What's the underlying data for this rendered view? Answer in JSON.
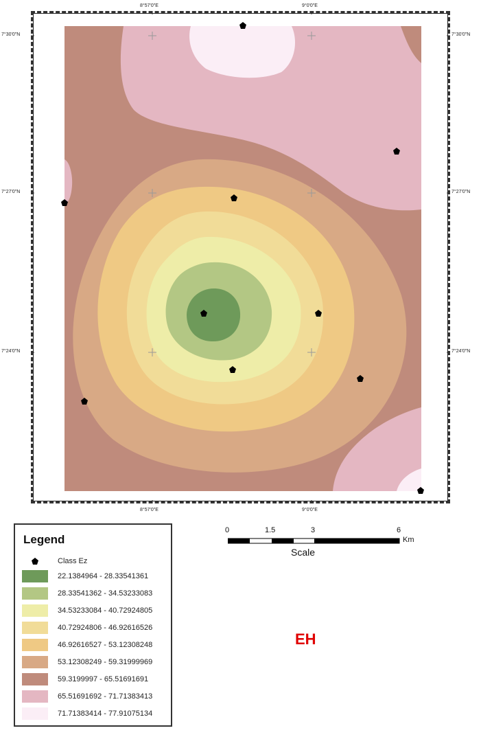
{
  "axis": {
    "top": [
      "8°57'0\"E",
      "9°0'0\"E"
    ],
    "bottom": [
      "8°57'0\"E",
      "9°0'0\"E"
    ],
    "left": [
      "7°30'0\"N",
      "7°27'0\"N",
      "7°24'0\"N"
    ],
    "right": [
      "7°30'0\"N",
      "7°27'0\"N",
      "7°24'0\"N"
    ]
  },
  "legend": {
    "title": "Legend",
    "point_label": "Class Ez",
    "classes": [
      {
        "label": "22.1384964 - 28.33541361",
        "color": "#6e9a5a"
      },
      {
        "label": "28.33541362 - 34.53233083",
        "color": "#b3c784"
      },
      {
        "label": "34.53233084 - 40.72924805",
        "color": "#eeeda8"
      },
      {
        "label": "40.72924806 - 46.92616526",
        "color": "#f1dc98"
      },
      {
        "label": "46.92616527 - 53.12308248",
        "color": "#efc984"
      },
      {
        "label": "53.12308249 - 59.31999969",
        "color": "#d8a985"
      },
      {
        "label": "59.3199997 - 65.51691691",
        "color": "#bf8b7c"
      },
      {
        "label": "65.51691692 - 71.71383413",
        "color": "#e4b7c2"
      },
      {
        "label": "71.71383414 - 77.91075134",
        "color": "#fbeef6"
      }
    ]
  },
  "scale": {
    "ticks": [
      "0",
      "1.5",
      "3",
      "6"
    ],
    "unit": "Km",
    "title": "Scale"
  },
  "panel_label": "EH"
}
